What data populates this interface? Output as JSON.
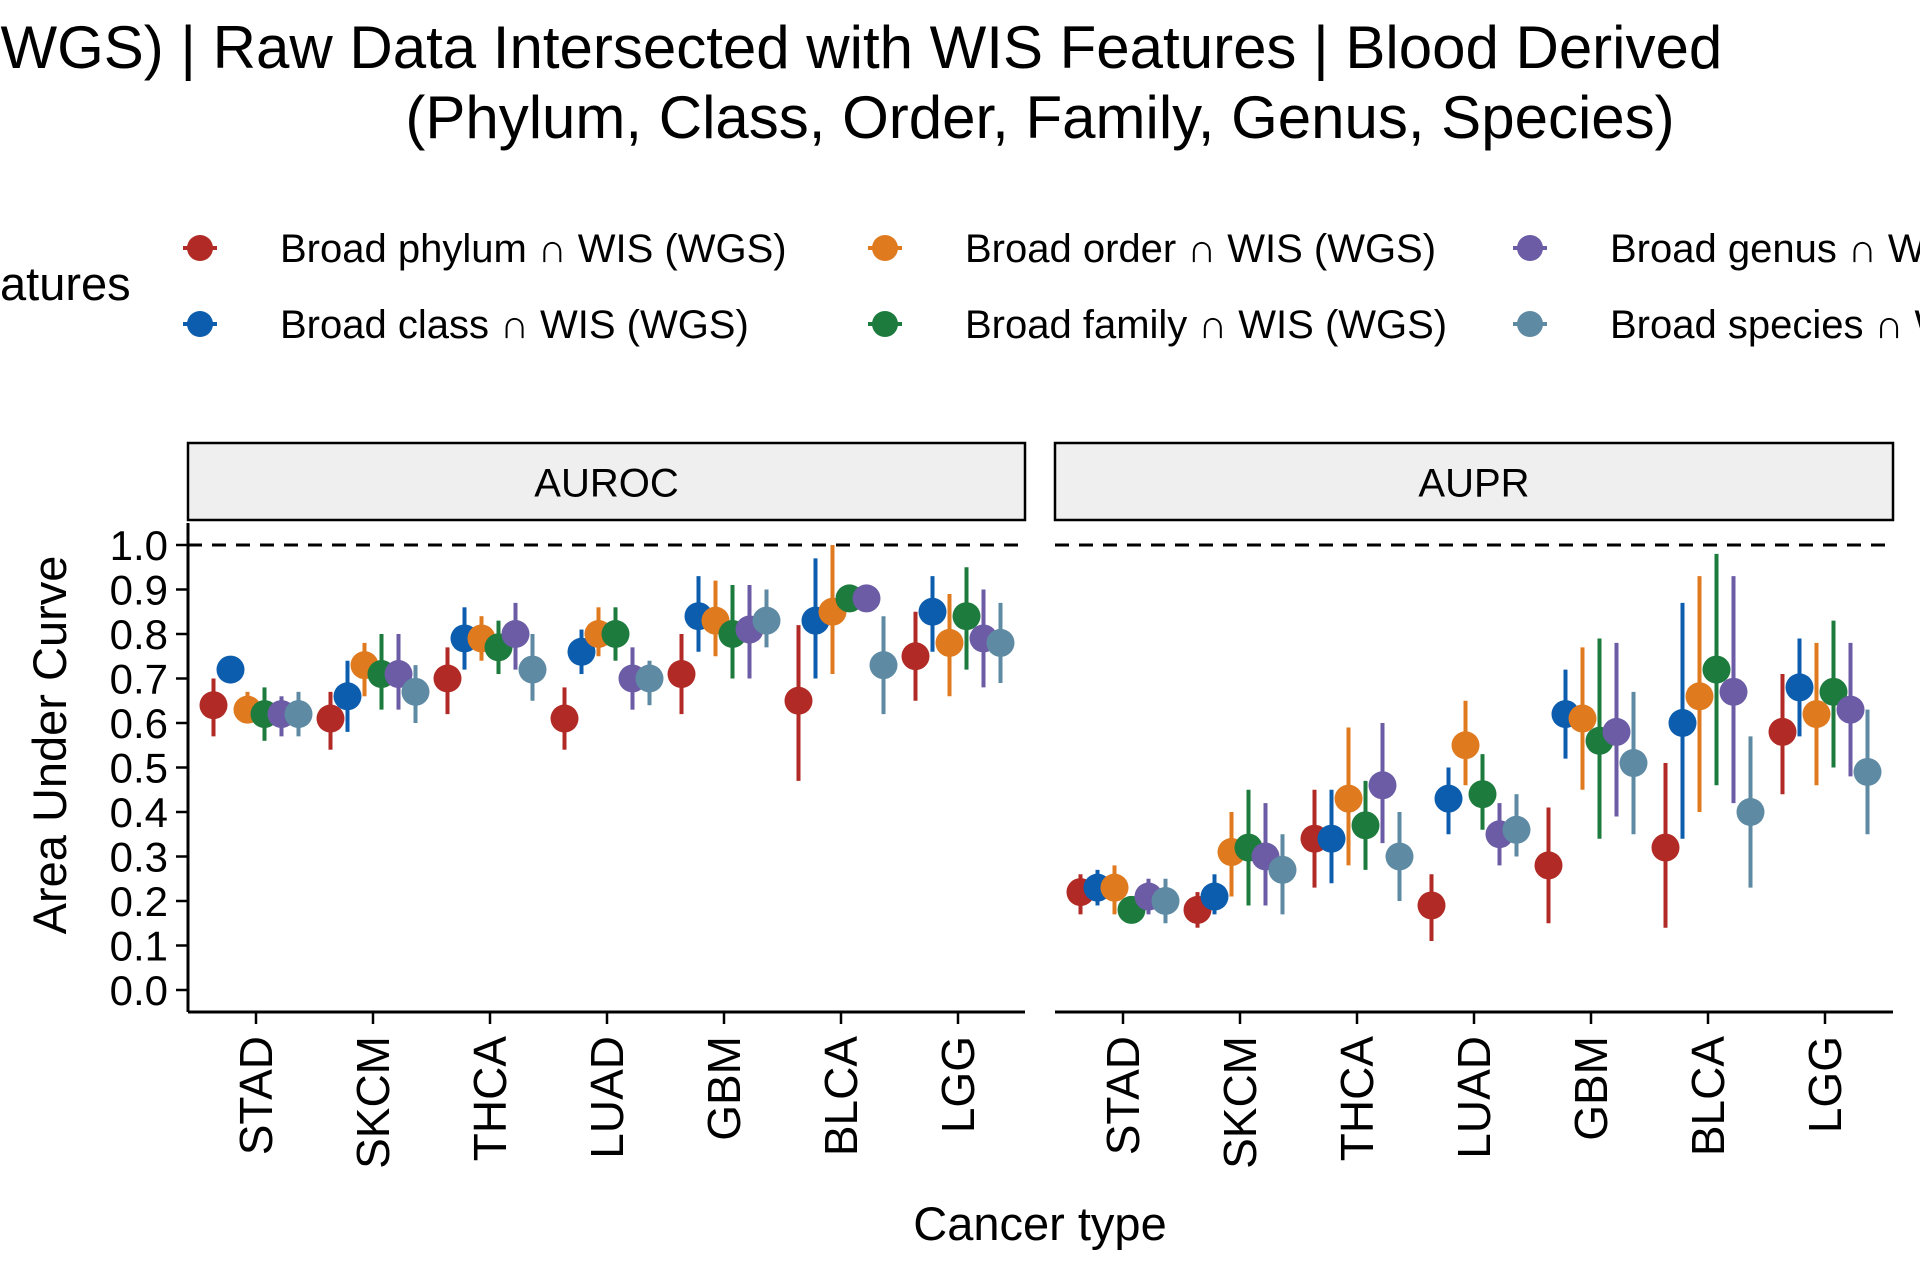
{
  "chart_data": {
    "type": "scatter",
    "title_line1": "te (WGS) | Raw Data Intersected with WIS Features  | Blood Derived",
    "title_line2": "(Phylum, Class, Order, Family, Genus, Species)",
    "xlabel": "Cancer type",
    "ylabel": "Area Under Curve",
    "ylim": [
      0,
      1
    ],
    "yticks": [
      "0.0",
      "0.1",
      "0.2",
      "0.3",
      "0.4",
      "0.5",
      "0.6",
      "0.7",
      "0.8",
      "0.9",
      "1.0"
    ],
    "reference_line": 1.0,
    "grid": false,
    "legend_position": "top",
    "legend_title": "atures",
    "categories": [
      "STAD",
      "SKCM",
      "THCA",
      "LUAD",
      "GBM",
      "BLCA",
      "LGG"
    ],
    "panels": [
      "AUROC",
      "AUPR"
    ],
    "series": [
      {
        "name": "Broad phylum ∩ WIS (WGS)",
        "color": "#B22A25"
      },
      {
        "name": "Broad class ∩ WIS (WGS)",
        "color": "#0C5DAD"
      },
      {
        "name": "Broad order ∩ WIS (WGS)",
        "color": "#E07A1F"
      },
      {
        "name": "Broad family ∩ WIS (WGS)",
        "color": "#1E7B3E"
      },
      {
        "name": "Broad genus ∩ W",
        "color": "#6B5CA5"
      },
      {
        "name": "Broad species ∩ W",
        "color": "#5E8BA3"
      }
    ],
    "data": {
      "AUROC": [
        {
          "cat": "STAD",
          "v": [
            [
              0.64,
              0.57,
              0.7
            ],
            [
              0.72,
              0.72,
              0.72
            ],
            [
              0.63,
              0.6,
              0.67
            ],
            [
              0.62,
              0.56,
              0.68
            ],
            [
              0.62,
              0.57,
              0.66
            ],
            [
              0.62,
              0.57,
              0.67
            ]
          ]
        },
        {
          "cat": "SKCM",
          "v": [
            [
              0.61,
              0.54,
              0.67
            ],
            [
              0.66,
              0.58,
              0.74
            ],
            [
              0.73,
              0.66,
              0.78
            ],
            [
              0.71,
              0.63,
              0.8
            ],
            [
              0.71,
              0.63,
              0.8
            ],
            [
              0.67,
              0.6,
              0.73
            ]
          ]
        },
        {
          "cat": "THCA",
          "v": [
            [
              0.7,
              0.62,
              0.77
            ],
            [
              0.79,
              0.72,
              0.86
            ],
            [
              0.79,
              0.74,
              0.84
            ],
            [
              0.77,
              0.71,
              0.83
            ],
            [
              0.8,
              0.72,
              0.87
            ],
            [
              0.72,
              0.65,
              0.8
            ]
          ]
        },
        {
          "cat": "LUAD",
          "v": [
            [
              0.61,
              0.54,
              0.68
            ],
            [
              0.76,
              0.71,
              0.81
            ],
            [
              0.8,
              0.75,
              0.86
            ],
            [
              0.8,
              0.74,
              0.86
            ],
            [
              0.7,
              0.63,
              0.77
            ],
            [
              0.7,
              0.64,
              0.74
            ]
          ]
        },
        {
          "cat": "GBM",
          "v": [
            [
              0.71,
              0.62,
              0.8
            ],
            [
              0.84,
              0.76,
              0.93
            ],
            [
              0.83,
              0.75,
              0.92
            ],
            [
              0.8,
              0.7,
              0.91
            ],
            [
              0.81,
              0.7,
              0.91
            ],
            [
              0.83,
              0.77,
              0.9
            ]
          ]
        },
        {
          "cat": "BLCA",
          "v": [
            [
              0.65,
              0.47,
              0.82
            ],
            [
              0.83,
              0.7,
              0.97
            ],
            [
              0.85,
              0.71,
              1.0
            ],
            [
              0.88,
              0.88,
              0.88
            ],
            [
              0.88,
              0.88,
              0.88
            ],
            [
              0.73,
              0.62,
              0.84
            ]
          ]
        },
        {
          "cat": "LGG",
          "v": [
            [
              0.75,
              0.65,
              0.85
            ],
            [
              0.85,
              0.76,
              0.93
            ],
            [
              0.78,
              0.66,
              0.89
            ],
            [
              0.84,
              0.72,
              0.95
            ],
            [
              0.79,
              0.68,
              0.9
            ],
            [
              0.78,
              0.69,
              0.87
            ]
          ]
        }
      ],
      "AUPR": [
        {
          "cat": "STAD",
          "v": [
            [
              0.22,
              0.17,
              0.26
            ],
            [
              0.23,
              0.19,
              0.27
            ],
            [
              0.23,
              0.17,
              0.28
            ],
            [
              0.18,
              0.16,
              0.2
            ],
            [
              0.21,
              0.17,
              0.25
            ],
            [
              0.2,
              0.15,
              0.25
            ]
          ]
        },
        {
          "cat": "SKCM",
          "v": [
            [
              0.18,
              0.14,
              0.22
            ],
            [
              0.21,
              0.17,
              0.26
            ],
            [
              0.31,
              0.21,
              0.4
            ],
            [
              0.32,
              0.19,
              0.45
            ],
            [
              0.3,
              0.19,
              0.42
            ],
            [
              0.27,
              0.17,
              0.35
            ]
          ]
        },
        {
          "cat": "THCA",
          "v": [
            [
              0.34,
              0.23,
              0.45
            ],
            [
              0.34,
              0.24,
              0.45
            ],
            [
              0.43,
              0.28,
              0.59
            ],
            [
              0.37,
              0.27,
              0.47
            ],
            [
              0.46,
              0.33,
              0.6
            ],
            [
              0.3,
              0.2,
              0.4
            ]
          ]
        },
        {
          "cat": "LUAD",
          "v": [
            [
              0.19,
              0.11,
              0.26
            ],
            [
              0.43,
              0.35,
              0.5
            ],
            [
              0.55,
              0.46,
              0.65
            ],
            [
              0.44,
              0.36,
              0.53
            ],
            [
              0.35,
              0.28,
              0.42
            ],
            [
              0.36,
              0.3,
              0.44
            ]
          ]
        },
        {
          "cat": "GBM",
          "v": [
            [
              0.28,
              0.15,
              0.41
            ],
            [
              0.62,
              0.52,
              0.72
            ],
            [
              0.61,
              0.45,
              0.77
            ],
            [
              0.56,
              0.34,
              0.79
            ],
            [
              0.58,
              0.39,
              0.78
            ],
            [
              0.51,
              0.35,
              0.67
            ]
          ]
        },
        {
          "cat": "BLCA",
          "v": [
            [
              0.32,
              0.14,
              0.51
            ],
            [
              0.6,
              0.34,
              0.87
            ],
            [
              0.66,
              0.4,
              0.93
            ],
            [
              0.72,
              0.46,
              0.98
            ],
            [
              0.67,
              0.42,
              0.93
            ],
            [
              0.4,
              0.23,
              0.57
            ]
          ]
        },
        {
          "cat": "LGG",
          "v": [
            [
              0.58,
              0.44,
              0.71
            ],
            [
              0.68,
              0.57,
              0.79
            ],
            [
              0.62,
              0.46,
              0.78
            ],
            [
              0.67,
              0.5,
              0.83
            ],
            [
              0.63,
              0.48,
              0.78
            ],
            [
              0.49,
              0.35,
              0.63
            ]
          ]
        }
      ]
    }
  }
}
